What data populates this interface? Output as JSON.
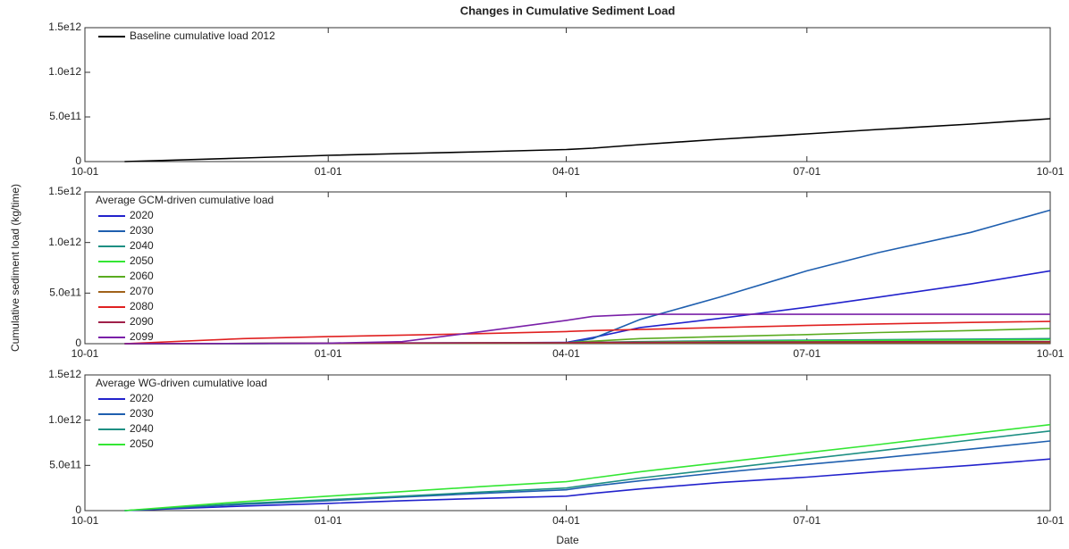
{
  "chart_data": [
    {
      "type": "line",
      "title": "Changes in Cumulative Sediment Load",
      "x": [
        15,
        60,
        92,
        120,
        150,
        182,
        192,
        210,
        240,
        273,
        300,
        335,
        365
      ],
      "xlim": [
        0,
        365
      ],
      "xticks": [
        {
          "value": 0,
          "label": "10-01"
        },
        {
          "value": 92,
          "label": "01-01"
        },
        {
          "value": 182,
          "label": "04-01"
        },
        {
          "value": 273,
          "label": "07-01"
        },
        {
          "value": 365,
          "label": "10-01"
        }
      ],
      "ylim": [
        0,
        1500000000000
      ],
      "yticks": [
        0,
        {
          "value": 500000000000,
          "label": "5.0e11"
        },
        {
          "value": 1000000000000,
          "label": "1.0e12"
        },
        {
          "value": 1500000000000,
          "label": "1.5e12"
        }
      ],
      "series": [
        {
          "name": "Baseline cumulative load 2012",
          "color": "#000000",
          "values": [
            0,
            40000000000,
            70000000000,
            90000000000,
            110000000000,
            135000000000,
            150000000000,
            190000000000,
            250000000000,
            310000000000,
            360000000000,
            420000000000,
            480000000000
          ]
        }
      ]
    },
    {
      "type": "line",
      "ylabel": "Cumulative sediment load (kg/time)",
      "legend_title": "Average GCM-driven cumulative load",
      "x": [
        15,
        60,
        92,
        120,
        150,
        182,
        192,
        210,
        240,
        273,
        300,
        335,
        365
      ],
      "xlim": [
        0,
        365
      ],
      "xticks": [
        {
          "value": 0,
          "label": "10-01"
        },
        {
          "value": 92,
          "label": "01-01"
        },
        {
          "value": 182,
          "label": "04-01"
        },
        {
          "value": 273,
          "label": "07-01"
        },
        {
          "value": 365,
          "label": "10-01"
        }
      ],
      "ylim": [
        0,
        1500000000000
      ],
      "yticks": [
        0,
        {
          "value": 500000000000,
          "label": "5.0e11"
        },
        {
          "value": 1000000000000,
          "label": "1.0e12"
        },
        {
          "value": 1500000000000,
          "label": "1.5e12"
        }
      ],
      "series": [
        {
          "name": "2020",
          "color": "#2222cc",
          "values": [
            0,
            2000000000,
            5000000000,
            7000000000,
            9000000000,
            12000000000,
            60000000000,
            160000000000,
            250000000000,
            360000000000,
            460000000000,
            590000000000,
            720000000000
          ]
        },
        {
          "name": "2030",
          "color": "#1f5faf",
          "values": [
            0,
            1000000000,
            2000000000,
            3000000000,
            4000000000,
            6000000000,
            50000000000,
            240000000000,
            460000000000,
            720000000000,
            900000000000,
            1100000000000,
            1320000000000
          ]
        },
        {
          "name": "2040",
          "color": "#1d8f83",
          "values": [
            0,
            2000000000,
            4000000000,
            5000000000,
            6000000000,
            8000000000,
            12000000000,
            20000000000,
            28000000000,
            35000000000,
            40000000000,
            45000000000,
            50000000000
          ]
        },
        {
          "name": "2050",
          "color": "#33e633",
          "values": [
            0,
            2000000000,
            3000000000,
            4000000000,
            5000000000,
            6000000000,
            10000000000,
            16000000000,
            22000000000,
            28000000000,
            32000000000,
            36000000000,
            40000000000
          ]
        },
        {
          "name": "2060",
          "color": "#5aab20",
          "values": [
            0,
            3000000000,
            5000000000,
            6000000000,
            8000000000,
            10000000000,
            25000000000,
            50000000000,
            70000000000,
            90000000000,
            110000000000,
            130000000000,
            150000000000
          ]
        },
        {
          "name": "2070",
          "color": "#a0621a",
          "values": [
            0,
            2000000000,
            3000000000,
            4000000000,
            5000000000,
            6000000000,
            7000000000,
            8000000000,
            9000000000,
            10000000000,
            10000000000,
            10000000000,
            10000000000
          ]
        },
        {
          "name": "2080",
          "color": "#e02020",
          "values": [
            0,
            50000000000,
            70000000000,
            85000000000,
            100000000000,
            120000000000,
            130000000000,
            140000000000,
            160000000000,
            180000000000,
            195000000000,
            210000000000,
            220000000000
          ]
        },
        {
          "name": "2090",
          "color": "#a0204a",
          "values": [
            0,
            3000000000,
            5000000000,
            6000000000,
            8000000000,
            10000000000,
            12000000000,
            14000000000,
            16000000000,
            18000000000,
            19000000000,
            20000000000,
            20000000000
          ]
        },
        {
          "name": "2099",
          "color": "#7a20a8",
          "values": [
            0,
            2000000000,
            5000000000,
            20000000000,
            120000000000,
            230000000000,
            270000000000,
            290000000000,
            290000000000,
            290000000000,
            290000000000,
            290000000000,
            290000000000
          ]
        }
      ]
    },
    {
      "type": "line",
      "xlabel": "Date",
      "legend_title": "Average WG-driven cumulative load",
      "x": [
        15,
        60,
        92,
        120,
        150,
        182,
        192,
        210,
        240,
        273,
        300,
        335,
        365
      ],
      "xlim": [
        0,
        365
      ],
      "xticks": [
        {
          "value": 0,
          "label": "10-01"
        },
        {
          "value": 92,
          "label": "01-01"
        },
        {
          "value": 182,
          "label": "04-01"
        },
        {
          "value": 273,
          "label": "07-01"
        },
        {
          "value": 365,
          "label": "10-01"
        }
      ],
      "ylim": [
        0,
        1500000000000
      ],
      "yticks": [
        0,
        {
          "value": 500000000000,
          "label": "5.0e11"
        },
        {
          "value": 1000000000000,
          "label": "1.0e12"
        },
        {
          "value": 1500000000000,
          "label": "1.5e12"
        }
      ],
      "series": [
        {
          "name": "2020",
          "color": "#2222cc",
          "values": [
            0,
            50000000000,
            80000000000,
            110000000000,
            135000000000,
            160000000000,
            190000000000,
            240000000000,
            310000000000,
            370000000000,
            430000000000,
            500000000000,
            570000000000
          ]
        },
        {
          "name": "2030",
          "color": "#1f5faf",
          "values": [
            0,
            70000000000,
            110000000000,
            150000000000,
            190000000000,
            230000000000,
            270000000000,
            330000000000,
            420000000000,
            510000000000,
            580000000000,
            680000000000,
            770000000000
          ]
        },
        {
          "name": "2040",
          "color": "#1d8f83",
          "values": [
            0,
            80000000000,
            120000000000,
            160000000000,
            205000000000,
            250000000000,
            290000000000,
            360000000000,
            460000000000,
            570000000000,
            660000000000,
            780000000000,
            880000000000
          ]
        },
        {
          "name": "2050",
          "color": "#33e633",
          "values": [
            0,
            100000000000,
            160000000000,
            210000000000,
            265000000000,
            320000000000,
            360000000000,
            430000000000,
            530000000000,
            640000000000,
            730000000000,
            850000000000,
            950000000000
          ]
        }
      ]
    }
  ]
}
